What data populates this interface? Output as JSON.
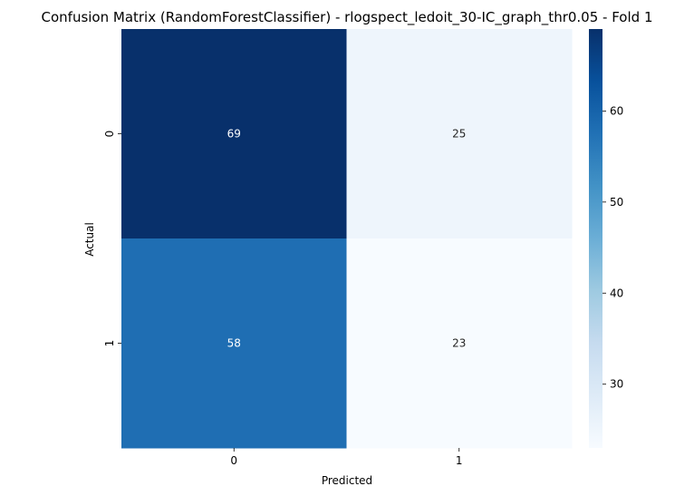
{
  "chart_data": {
    "type": "heatmap",
    "title": "Confusion Matrix (RandomForestClassifier) - rlogspect_ledoit_30-IC_graph_thr0.05 - Fold 1",
    "xlabel": "Predicted",
    "ylabel": "Actual",
    "x_categories": [
      "0",
      "1"
    ],
    "y_categories": [
      "0",
      "1"
    ],
    "values": [
      [
        69,
        25
      ],
      [
        58,
        23
      ]
    ],
    "colormap": "Blues",
    "colorbar": {
      "range": [
        23,
        69
      ],
      "ticks": [
        30,
        40,
        50,
        60
      ],
      "tick_labels": [
        "30",
        "40",
        "50",
        "60"
      ]
    },
    "annotations": true
  }
}
